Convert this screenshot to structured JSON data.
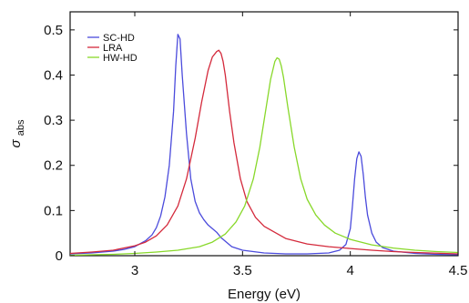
{
  "chart_data": {
    "type": "line",
    "xlabel": "Energy (eV)",
    "ylabel": "σ",
    "ylabel_subscript": "abs",
    "xlim": [
      2.7,
      4.5
    ],
    "ylim": [
      0,
      0.54
    ],
    "xticks": [
      3,
      3.5,
      4,
      4.5
    ],
    "xtick_labels": [
      "3",
      "3.5",
      "4",
      "4.5"
    ],
    "yticks": [
      0,
      0.1,
      0.2,
      0.3,
      0.4,
      0.5
    ],
    "ytick_labels": [
      "0",
      "0.1",
      "0.2",
      "0.3",
      "0.4",
      "0.5"
    ],
    "grid": false,
    "legend_position": "top-left",
    "series": [
      {
        "name": "SC-HD",
        "color": "#4b4bdc",
        "x": [
          2.7,
          2.8,
          2.9,
          2.95,
          3.0,
          3.05,
          3.08,
          3.1,
          3.12,
          3.14,
          3.16,
          3.18,
          3.19,
          3.2,
          3.21,
          3.22,
          3.24,
          3.26,
          3.28,
          3.3,
          3.32,
          3.34,
          3.36,
          3.38,
          3.4,
          3.45,
          3.5,
          3.6,
          3.7,
          3.8,
          3.9,
          3.95,
          3.98,
          4.0,
          4.01,
          4.02,
          4.03,
          4.04,
          4.05,
          4.06,
          4.07,
          4.08,
          4.1,
          4.12,
          4.15,
          4.2,
          4.3,
          4.4,
          4.5
        ],
        "y": [
          0.004,
          0.006,
          0.01,
          0.014,
          0.02,
          0.033,
          0.046,
          0.062,
          0.088,
          0.13,
          0.2,
          0.32,
          0.42,
          0.49,
          0.48,
          0.4,
          0.27,
          0.17,
          0.12,
          0.095,
          0.08,
          0.068,
          0.06,
          0.052,
          0.04,
          0.02,
          0.012,
          0.006,
          0.004,
          0.004,
          0.006,
          0.012,
          0.025,
          0.06,
          0.11,
          0.17,
          0.215,
          0.23,
          0.22,
          0.18,
          0.13,
          0.09,
          0.05,
          0.03,
          0.018,
          0.01,
          0.005,
          0.003,
          0.002
        ]
      },
      {
        "name": "LRA",
        "color": "#d42a3c",
        "x": [
          2.7,
          2.8,
          2.9,
          3.0,
          3.05,
          3.1,
          3.15,
          3.2,
          3.24,
          3.28,
          3.31,
          3.34,
          3.36,
          3.38,
          3.39,
          3.4,
          3.41,
          3.42,
          3.44,
          3.46,
          3.49,
          3.52,
          3.56,
          3.6,
          3.7,
          3.8,
          3.9,
          4.0,
          4.1,
          4.2,
          4.3,
          4.5
        ],
        "y": [
          0.005,
          0.008,
          0.012,
          0.022,
          0.03,
          0.044,
          0.068,
          0.11,
          0.17,
          0.26,
          0.34,
          0.41,
          0.44,
          0.452,
          0.455,
          0.448,
          0.43,
          0.4,
          0.32,
          0.25,
          0.17,
          0.12,
          0.085,
          0.065,
          0.038,
          0.026,
          0.02,
          0.016,
          0.012,
          0.009,
          0.007,
          0.004
        ]
      },
      {
        "name": "HW-HD",
        "color": "#88d82a",
        "x": [
          2.7,
          2.9,
          3.0,
          3.1,
          3.2,
          3.3,
          3.36,
          3.42,
          3.47,
          3.51,
          3.55,
          3.58,
          3.61,
          3.63,
          3.65,
          3.66,
          3.67,
          3.68,
          3.69,
          3.71,
          3.74,
          3.77,
          3.8,
          3.84,
          3.88,
          3.93,
          4.0,
          4.1,
          4.2,
          4.3,
          4.4,
          4.5
        ],
        "y": [
          0.001,
          0.003,
          0.005,
          0.008,
          0.012,
          0.02,
          0.03,
          0.048,
          0.075,
          0.11,
          0.17,
          0.24,
          0.33,
          0.39,
          0.43,
          0.438,
          0.435,
          0.42,
          0.395,
          0.33,
          0.24,
          0.17,
          0.125,
          0.09,
          0.068,
          0.05,
          0.036,
          0.024,
          0.017,
          0.012,
          0.009,
          0.007
        ]
      }
    ]
  }
}
